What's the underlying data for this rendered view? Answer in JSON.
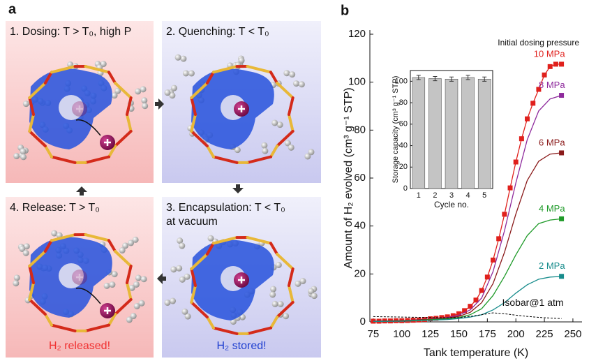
{
  "panel_a": {
    "label": "a",
    "steps": [
      "1. Dosing: T > T₀, high P",
      "2. Quenching: T < T₀",
      "3. Encapsulation: T < T₀",
      "4. Release: T > T₀"
    ],
    "step3_note": "at vacuum",
    "released": "H₂ released!",
    "stored": "H₂ stored!"
  },
  "chart_data": [
    {
      "type": "line",
      "panel_label": "b",
      "x_label": "Tank temperature (K)",
      "y_label": "Amount of H₂ evolved (cm³ g⁻¹ STP)",
      "annotation": "Initial dosing pressure",
      "xlim": [
        72,
        258
      ],
      "xticks": [
        75,
        100,
        125,
        150,
        175,
        200,
        225,
        250
      ],
      "ylim": [
        0,
        120
      ],
      "yticks": [
        0,
        20,
        40,
        60,
        80,
        100,
        120
      ],
      "series": [
        {
          "name": "10 MPa",
          "color": "#e0201c",
          "marker": "square",
          "x": [
            75,
            80,
            85,
            90,
            95,
            100,
            105,
            110,
            115,
            120,
            125,
            130,
            135,
            140,
            145,
            150,
            155,
            160,
            165,
            170,
            175,
            180,
            185,
            190,
            195,
            200,
            205,
            210,
            215,
            220,
            225,
            230,
            235,
            240
          ],
          "values": [
            0.3,
            0.3,
            0.4,
            0.4,
            0.5,
            0.5,
            0.6,
            0.7,
            0.8,
            1.0,
            1.3,
            1.5,
            1.8,
            2.1,
            2.6,
            3.4,
            4.7,
            6.5,
            9.1,
            13.1,
            18.7,
            25.8,
            34.7,
            44.9,
            55.9,
            66.7,
            76.4,
            84.7,
            91.2,
            97,
            103,
            106.5,
            107.5,
            107.5
          ]
        },
        {
          "name": "8 MPa",
          "color": "#8e2a9c",
          "marker": "end",
          "x": [
            75,
            100,
            125,
            140,
            150,
            160,
            170,
            180,
            190,
            200,
            210,
            220,
            230,
            240
          ],
          "values": [
            0.3,
            0.5,
            1.2,
            1.8,
            2.8,
            5,
            10,
            21,
            38,
            58,
            76,
            88,
            93,
            94.5
          ]
        },
        {
          "name": "6 MPa",
          "color": "#8a1a1a",
          "marker": "end",
          "x": [
            75,
            100,
            125,
            140,
            150,
            160,
            170,
            180,
            190,
            200,
            210,
            220,
            230,
            240
          ],
          "values": [
            0.3,
            0.5,
            1.1,
            1.6,
            2.3,
            4,
            8,
            16,
            29,
            45,
            59,
            67,
            70,
            70.5
          ]
        },
        {
          "name": "4 MPa",
          "color": "#1e9a28",
          "marker": "end",
          "x": [
            75,
            100,
            125,
            140,
            150,
            160,
            170,
            180,
            190,
            200,
            210,
            220,
            230,
            240
          ],
          "values": [
            0.2,
            0.4,
            0.9,
            1.3,
            1.8,
            3,
            5.5,
            11,
            19,
            28,
            36,
            41,
            42.5,
            43
          ]
        },
        {
          "name": "2 MPa",
          "color": "#178c8c",
          "marker": "end",
          "x": [
            75,
            100,
            125,
            140,
            150,
            160,
            170,
            180,
            190,
            200,
            210,
            220,
            230,
            240
          ],
          "values": [
            0.2,
            0.3,
            0.7,
            1,
            1.4,
            2,
            3,
            5,
            8,
            12,
            15.5,
            17.8,
            18.7,
            19
          ]
        },
        {
          "name": "Isobar@1 atm",
          "color": "#000000",
          "dash": true,
          "x": [
            75,
            100,
            125,
            140,
            150,
            160,
            170,
            180,
            190,
            200,
            210,
            220,
            230,
            240
          ],
          "values": [
            2.2,
            2,
            1.8,
            1.7,
            1.8,
            2.3,
            3,
            3.8,
            3.4,
            2.8,
            2.3,
            1.9,
            1.6,
            1.4
          ]
        }
      ]
    },
    {
      "type": "bar",
      "x_label": "Cycle no.",
      "y_label": "Storage capacity (cm³ g⁻¹ STP)",
      "categories": [
        "1",
        "2",
        "3",
        "4",
        "5"
      ],
      "values": [
        103.5,
        102.5,
        102,
        103.5,
        102
      ],
      "errors": [
        2,
        2,
        2,
        2,
        2
      ],
      "color": "#c4c4c4",
      "ylim": [
        0,
        110
      ],
      "yticks": [
        0,
        20,
        40,
        60,
        80,
        100
      ]
    }
  ]
}
